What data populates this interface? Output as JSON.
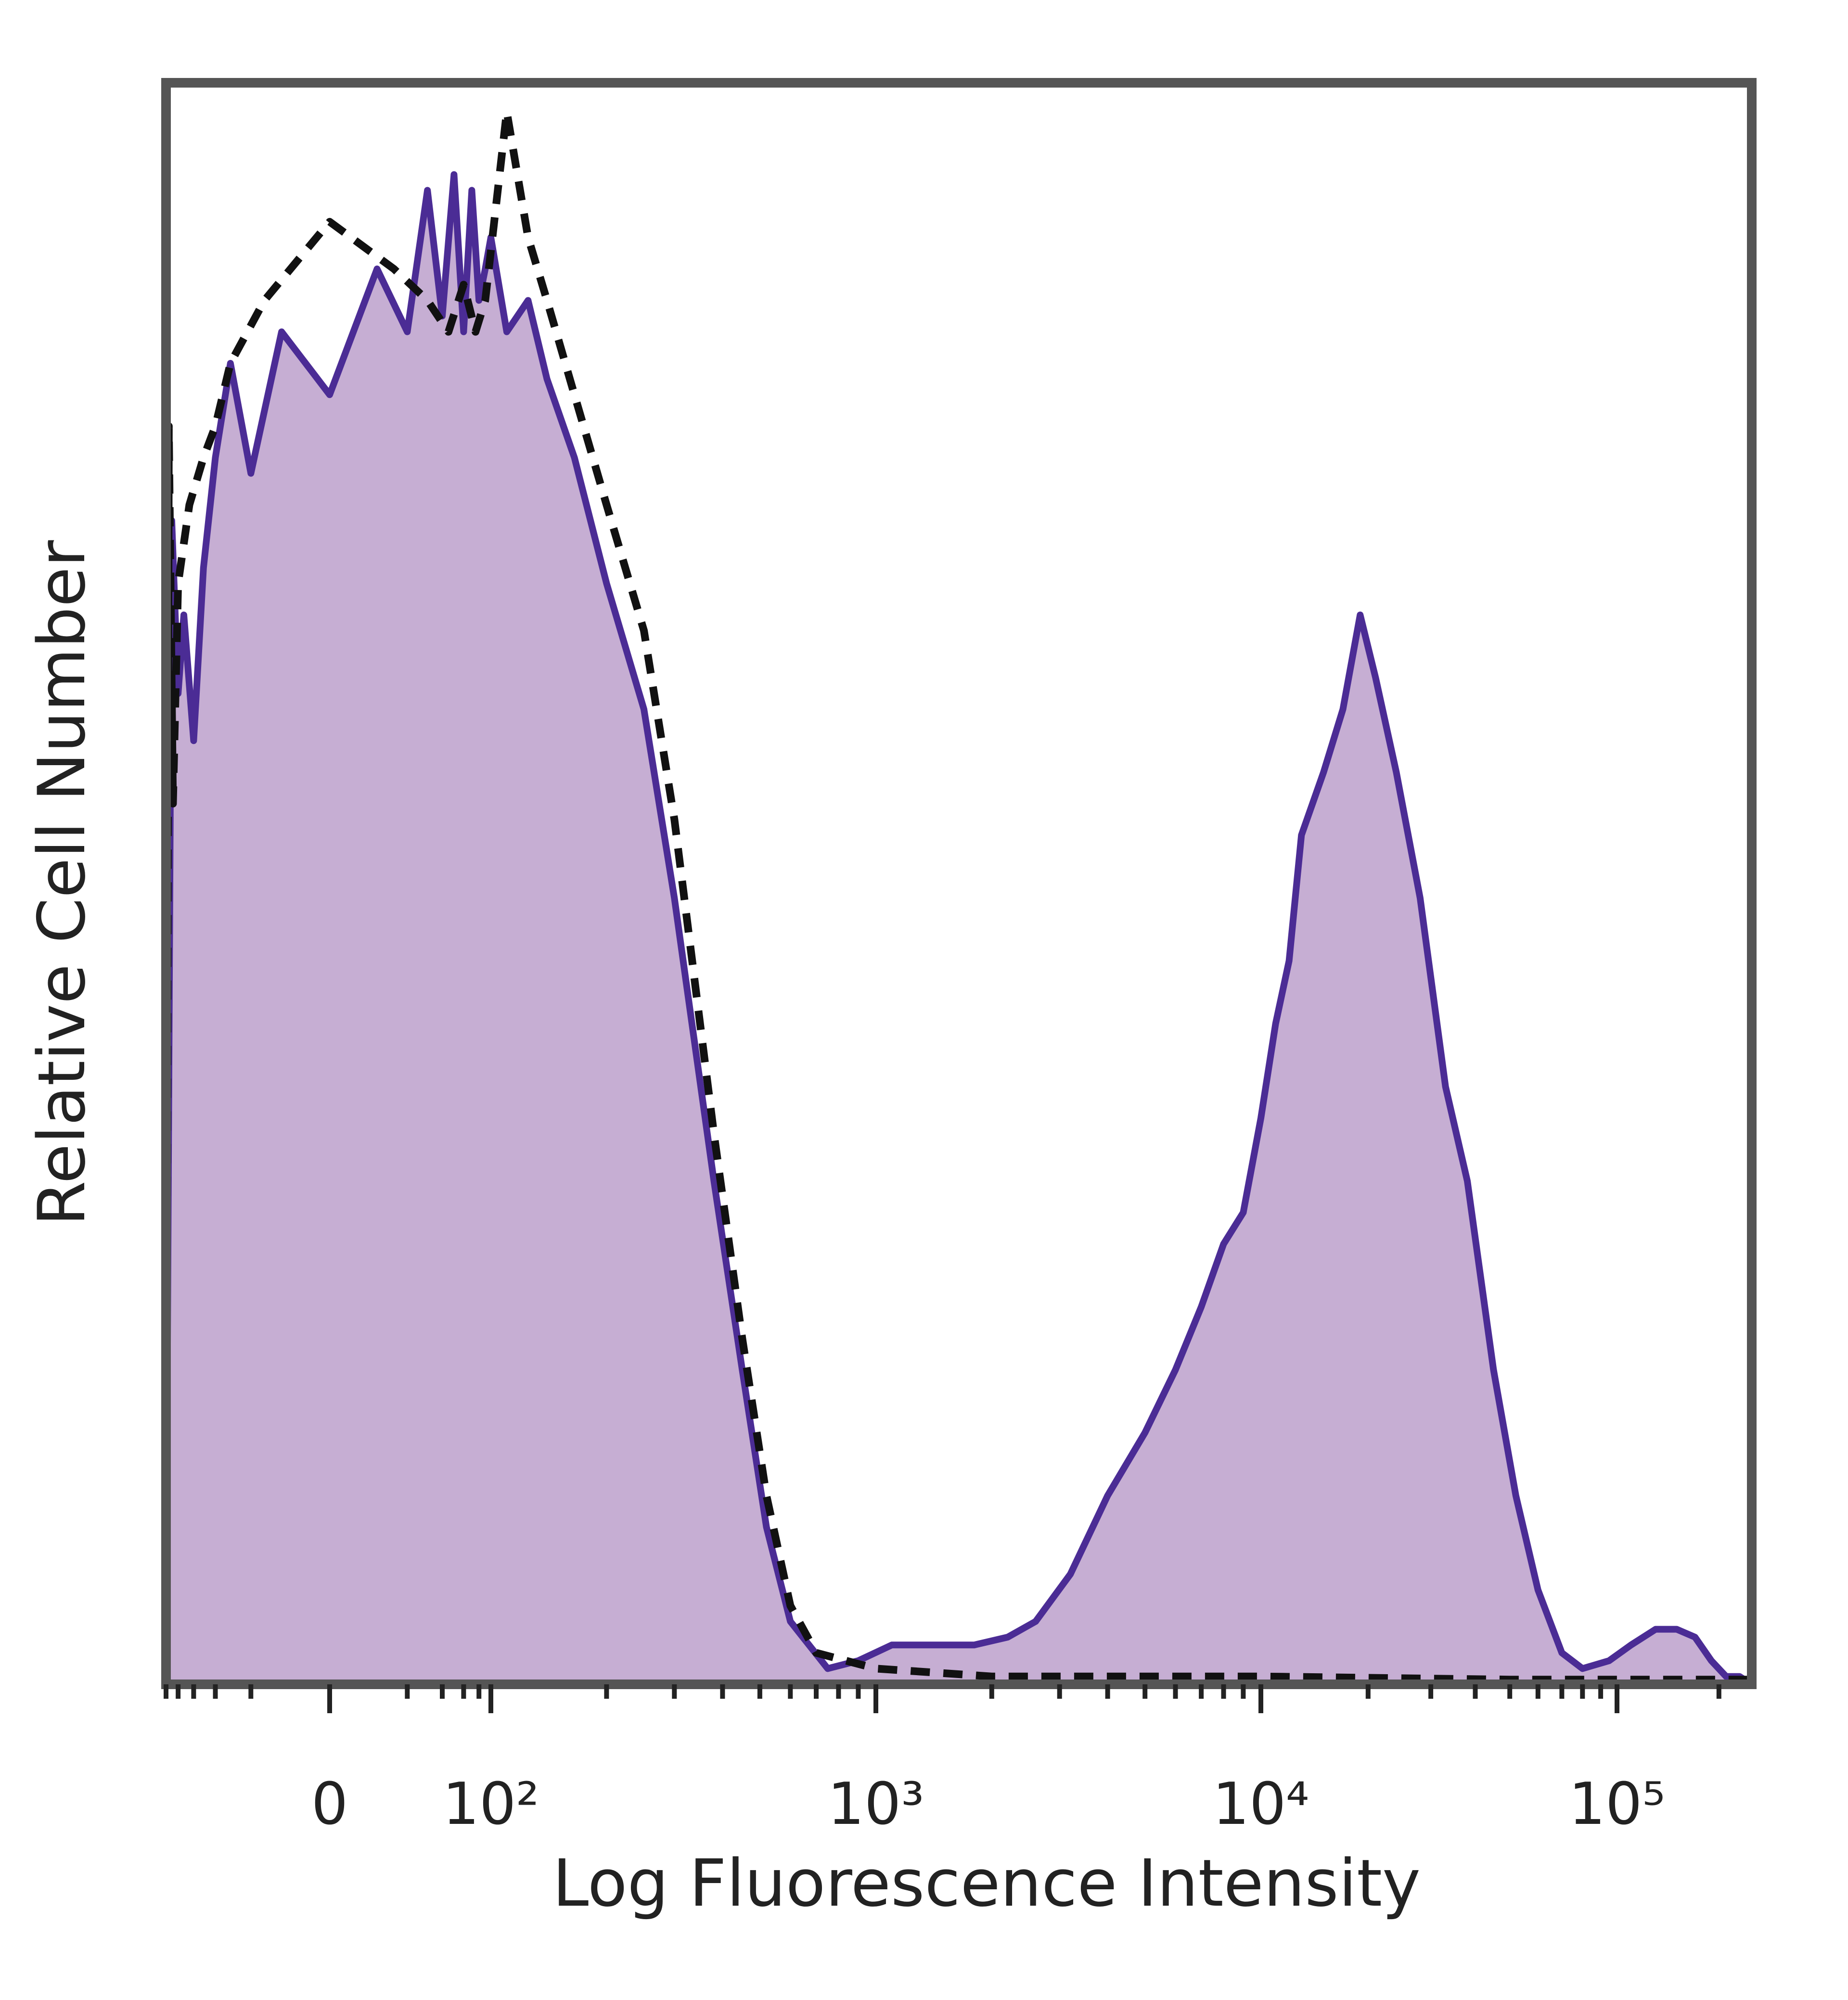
{
  "chart_data": {
    "type": "area",
    "xlabel": "Log Fluorescence Intensity",
    "ylabel": "Relative Cell Number",
    "x_scale": "biexponential",
    "x_major_ticks": [
      {
        "value": 0,
        "label": "0"
      },
      {
        "value": 100,
        "label": "10²"
      },
      {
        "value": 1000,
        "label": "10³"
      },
      {
        "value": 10000,
        "label": "10⁴"
      },
      {
        "value": 100000,
        "label": "10⁵"
      }
    ],
    "xlim": [
      -100,
      250000
    ],
    "ylim": [
      0,
      100
    ],
    "grid": false,
    "series": [
      {
        "style": "filled-solid",
        "fill_color": "#c6aed3",
        "line_color": "#4b2c95",
        "points": [
          [
            -100,
            4
          ],
          [
            -90,
            74
          ],
          [
            -80,
            63
          ],
          [
            -72,
            68
          ],
          [
            -60,
            60
          ],
          [
            -50,
            71
          ],
          [
            -40,
            78
          ],
          [
            -30,
            84
          ],
          [
            -20,
            77
          ],
          [
            -10,
            86
          ],
          [
            0,
            82
          ],
          [
            10,
            90
          ],
          [
            20,
            86
          ],
          [
            30,
            95
          ],
          [
            40,
            87
          ],
          [
            50,
            96
          ],
          [
            60,
            86
          ],
          [
            70,
            95
          ],
          [
            80,
            88
          ],
          [
            90,
            90
          ],
          [
            100,
            92
          ],
          [
            110,
            86
          ],
          [
            125,
            88
          ],
          [
            140,
            83
          ],
          [
            165,
            78
          ],
          [
            200,
            70
          ],
          [
            250,
            62
          ],
          [
            300,
            50
          ],
          [
            380,
            32
          ],
          [
            450,
            20
          ],
          [
            520,
            10
          ],
          [
            600,
            4
          ],
          [
            750,
            1
          ],
          [
            900,
            1.5
          ],
          [
            1100,
            2.5
          ],
          [
            1400,
            2.5
          ],
          [
            1800,
            2.5
          ],
          [
            2200,
            3
          ],
          [
            2600,
            4
          ],
          [
            3200,
            7
          ],
          [
            4000,
            12
          ],
          [
            5000,
            16
          ],
          [
            6000,
            20
          ],
          [
            7000,
            24
          ],
          [
            8000,
            28
          ],
          [
            9000,
            30
          ],
          [
            10000,
            36
          ],
          [
            11000,
            42
          ],
          [
            12000,
            46
          ],
          [
            13000,
            54
          ],
          [
            15000,
            58
          ],
          [
            17000,
            62
          ],
          [
            19000,
            68
          ],
          [
            21000,
            64
          ],
          [
            24000,
            58
          ],
          [
            28000,
            50
          ],
          [
            33000,
            38
          ],
          [
            38000,
            32
          ],
          [
            45000,
            20
          ],
          [
            52000,
            12
          ],
          [
            60000,
            6
          ],
          [
            70000,
            2
          ],
          [
            80000,
            1
          ],
          [
            95000,
            1.5
          ],
          [
            110000,
            2.5
          ],
          [
            130000,
            3.5
          ],
          [
            150000,
            3.5
          ],
          [
            170000,
            3
          ],
          [
            190000,
            1.5
          ],
          [
            210000,
            0.5
          ],
          [
            230000,
            0.5
          ],
          [
            250000,
            0
          ]
        ]
      },
      {
        "style": "dashed",
        "line_color": "#111111",
        "points": [
          [
            -100,
            4
          ],
          [
            -95,
            80
          ],
          [
            -88,
            56
          ],
          [
            -80,
            70
          ],
          [
            -65,
            75
          ],
          [
            -50,
            78
          ],
          [
            -40,
            80
          ],
          [
            -30,
            84
          ],
          [
            -15,
            88
          ],
          [
            0,
            93
          ],
          [
            15,
            90
          ],
          [
            30,
            88
          ],
          [
            45,
            86
          ],
          [
            60,
            89
          ],
          [
            75,
            86
          ],
          [
            90,
            88
          ],
          [
            110,
            100
          ],
          [
            125,
            92
          ],
          [
            140,
            88
          ],
          [
            165,
            82
          ],
          [
            200,
            75
          ],
          [
            250,
            67
          ],
          [
            300,
            55
          ],
          [
            380,
            35
          ],
          [
            450,
            22
          ],
          [
            520,
            12
          ],
          [
            600,
            5
          ],
          [
            700,
            2
          ],
          [
            1000,
            1
          ],
          [
            2000,
            0.5
          ],
          [
            5000,
            0.5
          ],
          [
            10000,
            0.5
          ],
          [
            50000,
            0.3
          ],
          [
            250000,
            0.3
          ]
        ]
      }
    ]
  }
}
